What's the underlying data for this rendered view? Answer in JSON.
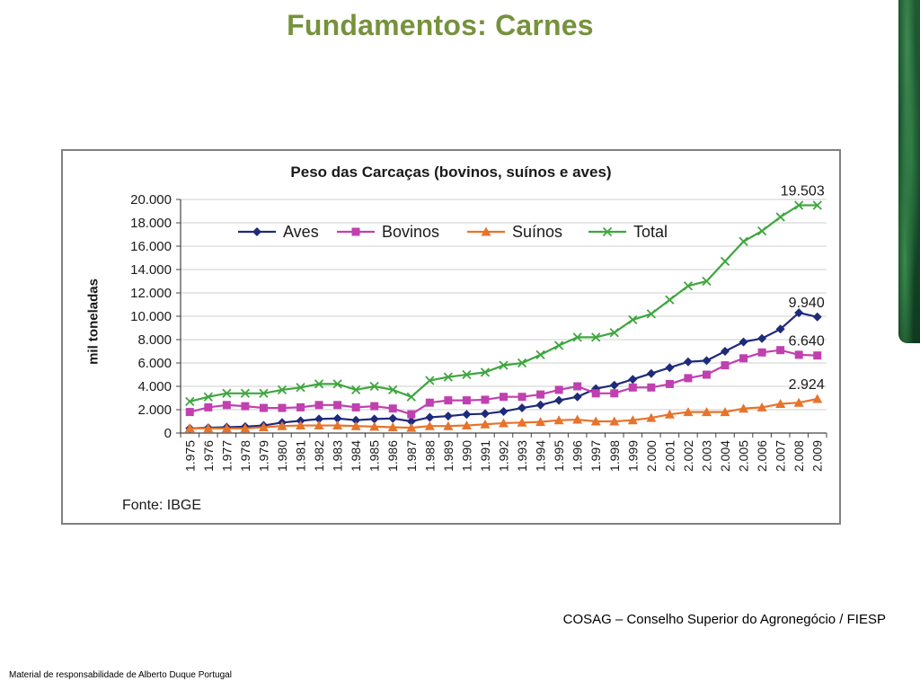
{
  "slide": {
    "title": "Fundamentos: Carnes",
    "credits": "COSAG – Conselho Superior do Agronegócio / FIESP",
    "footer": "Material de responsabilidade de Alberto Duque Portugal"
  },
  "chart_data": {
    "type": "line",
    "title": "Peso das Carcaças (bovinos, suínos e aves)",
    "ylabel": "mil toneladas",
    "xlabel": "",
    "source": "Fonte: IBGE",
    "ylim": [
      0,
      20000
    ],
    "yticks": [
      0,
      2000,
      4000,
      6000,
      8000,
      10000,
      12000,
      14000,
      16000,
      18000,
      20000
    ],
    "ytick_labels": [
      "0",
      "2.000",
      "4.000",
      "6.000",
      "8.000",
      "10.000",
      "12.000",
      "14.000",
      "16.000",
      "18.000",
      "20.000"
    ],
    "categories": [
      "1.975",
      "1.976",
      "1.977",
      "1.978",
      "1.979",
      "1.980",
      "1.981",
      "1.982",
      "1.983",
      "1.984",
      "1.985",
      "1.986",
      "1.987",
      "1.988",
      "1.989",
      "1.990",
      "1.991",
      "1.992",
      "1.993",
      "1.994",
      "1.995",
      "1.996",
      "1.997",
      "1.998",
      "1.999",
      "2.000",
      "2.001",
      "2.002",
      "2.003",
      "2.004",
      "2.005",
      "2.006",
      "2.007",
      "2.008",
      "2.009"
    ],
    "legend_position": "top",
    "series": [
      {
        "name": "Aves",
        "color": "#1f2a7a",
        "marker": "diamond",
        "values": [
          400,
          450,
          500,
          550,
          650,
          900,
          1050,
          1200,
          1250,
          1100,
          1200,
          1250,
          1000,
          1350,
          1450,
          1600,
          1650,
          1850,
          2150,
          2400,
          2800,
          3100,
          3800,
          4100,
          4600,
          5100,
          5600,
          6100,
          6200,
          7000,
          7800,
          8100,
          8900,
          10300,
          9940
        ]
      },
      {
        "name": "Bovinos",
        "color": "#c040b0",
        "marker": "square",
        "values": [
          1800,
          2200,
          2400,
          2300,
          2150,
          2150,
          2200,
          2400,
          2400,
          2200,
          2300,
          2100,
          1600,
          2600,
          2800,
          2800,
          2850,
          3100,
          3100,
          3300,
          3700,
          4000,
          3400,
          3400,
          3900,
          3900,
          4200,
          4700,
          5000,
          5800,
          6400,
          6900,
          7100,
          6700,
          6640
        ]
      },
      {
        "name": "Suínos",
        "color": "#e8732a",
        "marker": "triangle",
        "values": [
          400,
          400,
          400,
          400,
          500,
          600,
          650,
          650,
          650,
          600,
          550,
          500,
          450,
          600,
          600,
          650,
          750,
          850,
          900,
          950,
          1100,
          1150,
          1000,
          1000,
          1100,
          1300,
          1600,
          1800,
          1800,
          1800,
          2100,
          2200,
          2500,
          2600,
          2924
        ]
      },
      {
        "name": "Total",
        "color": "#3ea63e",
        "marker": "x",
        "values": [
          2700,
          3100,
          3400,
          3400,
          3400,
          3700,
          3900,
          4200,
          4200,
          3700,
          4000,
          3700,
          3100,
          4500,
          4800,
          5000,
          5200,
          5800,
          6000,
          6700,
          7500,
          8200,
          8200,
          8600,
          9700,
          10200,
          11400,
          12600,
          13000,
          14700,
          16400,
          17300,
          18500,
          19500,
          19503
        ]
      }
    ],
    "annotations": [
      "19.503",
      "9.940",
      "6.640",
      "2.924"
    ]
  }
}
